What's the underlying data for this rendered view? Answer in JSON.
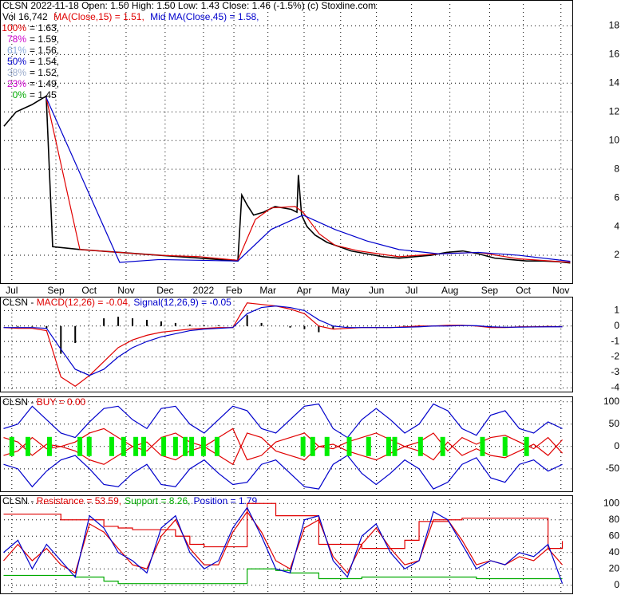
{
  "header": {
    "line1": "CLSN  2022-11-18 Open: 1.50  High: 1.50  Low: 1.43  Close: 1.46 (-1.5%)  (c) Stoxline.com",
    "vol": "Vol 16,742",
    "ma15": {
      "text": "MA(Close,15) = 1.51,",
      "color": "#e00000"
    },
    "ma45": {
      "text": "Mid MA(Close,45) = 1.58,",
      "color": "#0000cc"
    },
    "fib": [
      {
        "label": "100%",
        "text": "= 1.63,",
        "color": "#e00000"
      },
      {
        "label": "78%",
        "text": "= 1.59,",
        "color": "#cc00cc"
      },
      {
        "label": "61%",
        "text": "= 1.56,",
        "color": "#88aadd"
      },
      {
        "label": "50%",
        "text": "= 1.54,",
        "color": "#0000cc"
      },
      {
        "label": "38%",
        "text": "= 1.52,",
        "color": "#99aacc"
      },
      {
        "label": "23%",
        "text": "= 1.49,",
        "color": "#cc00cc"
      },
      {
        "label": "0%",
        "text": "= 1.45",
        "color": "#00aa00"
      }
    ]
  },
  "chart_data": [
    {
      "type": "line",
      "xlim": [
        0,
        16
      ],
      "ylim": [
        0,
        19.8
      ],
      "yticks": [
        2,
        4,
        6,
        8,
        10,
        12,
        14,
        16,
        18
      ],
      "grid": true,
      "xticks": [
        {
          "value": 0.33,
          "label": "Jul"
        },
        {
          "value": 1.56,
          "label": "Sep"
        },
        {
          "value": 2.49,
          "label": "Oct"
        },
        {
          "value": 3.52,
          "label": "Nov"
        },
        {
          "value": 4.61,
          "label": "Dec"
        },
        {
          "value": 5.68,
          "label": "2022"
        },
        {
          "value": 6.53,
          "label": "Feb"
        },
        {
          "value": 7.48,
          "label": "Mar"
        },
        {
          "value": 8.49,
          "label": "Apr"
        },
        {
          "value": 9.51,
          "label": "May"
        },
        {
          "value": 10.51,
          "label": "Jun"
        },
        {
          "value": 11.49,
          "label": "Jul"
        },
        {
          "value": 12.56,
          "label": "Aug"
        },
        {
          "value": 13.67,
          "label": "Sep"
        },
        {
          "value": 14.61,
          "label": "Oct"
        },
        {
          "value": 15.66,
          "label": "Nov"
        }
      ],
      "series": [
        {
          "color": "#000000",
          "x": [
            0.11,
            0.45,
            0.89,
            1.29,
            1.47,
            2.23,
            3.34,
            4.45,
            5.57,
            6.64,
            6.75,
            6.9,
            7.08,
            7.35,
            7.68,
            8.13,
            8.29,
            8.33,
            8.42,
            8.57,
            8.8,
            9.13,
            9.47,
            9.8,
            10.24,
            10.69,
            11.14,
            11.58,
            12.03,
            12.47,
            12.92,
            13.36,
            13.81,
            14.25,
            14.7,
            15.14,
            15.59,
            15.92
          ],
          "values": [
            11,
            12,
            12.5,
            13.1,
            2.6,
            2.4,
            2.2,
            2.0,
            1.8,
            1.6,
            6.2,
            5.5,
            4.8,
            5.0,
            5.4,
            5.2,
            5.0,
            7.6,
            4.8,
            4.0,
            3.4,
            2.9,
            2.6,
            2.3,
            2.1,
            1.9,
            1.8,
            1.9,
            2.0,
            2.2,
            2.3,
            2.1,
            1.8,
            1.7,
            1.6,
            1.6,
            1.55,
            1.46
          ]
        },
        {
          "color": "#e00000",
          "x": [
            1.29,
            2.23,
            3.34,
            4.45,
            5.57,
            6.64,
            7.13,
            7.57,
            8.24,
            8.46,
            8.91,
            9.35,
            10.02,
            11.14,
            12.25,
            13.36,
            14.48,
            15.92
          ],
          "values": [
            13.0,
            2.4,
            2.2,
            2.0,
            1.9,
            1.65,
            4.5,
            5.3,
            5.4,
            5.0,
            3.5,
            2.7,
            2.3,
            1.9,
            2.1,
            2.2,
            1.75,
            1.51
          ]
        },
        {
          "color": "#0000cc",
          "x": [
            1.29,
            3.34,
            4.45,
            6.64,
            7.57,
            8.46,
            9.35,
            10.24,
            11.14,
            12.25,
            13.36,
            14.48,
            15.92
          ],
          "values": [
            13.0,
            1.5,
            1.7,
            1.6,
            3.8,
            4.8,
            3.8,
            3.0,
            2.4,
            2.1,
            2.2,
            2.0,
            1.58
          ]
        }
      ]
    },
    {
      "type": "macd",
      "prefix": "CLSN - ",
      "title_parts": [
        {
          "text": "MACD(12,26) = -0.04,",
          "color": "#e00000"
        },
        {
          "text": "Signal(12,26,9) = -0.05",
          "color": "#0000cc"
        }
      ],
      "xlim": [
        0,
        16
      ],
      "ylim": [
        -4.3,
        1.9
      ],
      "yticks": [
        1,
        0,
        -1,
        -2,
        -3,
        -4
      ],
      "grid": true,
      "x": [
        0.1,
        0.5,
        0.9,
        1.3,
        1.7,
        2.1,
        2.5,
        2.9,
        3.3,
        3.7,
        4.1,
        4.5,
        4.9,
        5.3,
        5.7,
        6.1,
        6.5,
        6.9,
        7.3,
        7.7,
        8.1,
        8.5,
        8.9,
        9.3,
        9.7,
        10.1,
        10.5,
        10.9,
        11.3,
        11.7,
        12.1,
        12.5,
        12.9,
        13.3,
        13.7,
        14.1,
        14.5,
        14.9,
        15.3,
        15.7
      ],
      "histogram": {
        "color": "#000000",
        "values": [
          0,
          -0.05,
          -0.05,
          -0.15,
          -1.8,
          -1.1,
          0,
          0.5,
          0.6,
          0.5,
          0.4,
          0.3,
          0.2,
          0.1,
          0.05,
          0.05,
          0,
          0.7,
          0.2,
          0,
          -0.1,
          -0.2,
          -0.4,
          -0.2,
          -0.05,
          0,
          0,
          0,
          0.03,
          0.05,
          0,
          0.05,
          0.02,
          -0.02,
          -0.05,
          -0.02,
          0.02,
          0.01,
          0.02,
          0.01
        ]
      },
      "series": [
        {
          "color": "#e00000",
          "values": [
            -0.1,
            -0.15,
            -0.15,
            -0.3,
            -3.3,
            -3.9,
            -3.2,
            -2.3,
            -1.4,
            -0.9,
            -0.6,
            -0.4,
            -0.3,
            -0.2,
            -0.15,
            -0.1,
            -0.1,
            1.5,
            1.4,
            1.3,
            1.1,
            0.8,
            0,
            -0.2,
            -0.15,
            -0.1,
            -0.1,
            -0.1,
            -0.05,
            0,
            0,
            0.05,
            0.05,
            0,
            -0.1,
            -0.1,
            -0.05,
            -0.05,
            -0.03,
            -0.04
          ]
        },
        {
          "color": "#0000cc",
          "values": [
            -0.1,
            -0.1,
            -0.1,
            -0.15,
            -1.5,
            -2.8,
            -3.2,
            -2.8,
            -2.0,
            -1.4,
            -1.0,
            -0.7,
            -0.5,
            -0.3,
            -0.2,
            -0.15,
            -0.1,
            0.8,
            1.2,
            1.3,
            1.2,
            1.0,
            0.4,
            0,
            -0.1,
            -0.1,
            -0.1,
            -0.1,
            -0.08,
            -0.05,
            0,
            0,
            0.03,
            0.02,
            -0.05,
            -0.08,
            -0.07,
            -0.06,
            -0.05,
            -0.05
          ]
        }
      ]
    },
    {
      "type": "buy",
      "prefix": "CLSN - ",
      "title_parts": [
        {
          "text": "BUY = 0.00",
          "color": "#e00000"
        }
      ],
      "xlim": [
        0,
        16
      ],
      "ylim": [
        -102,
        112
      ],
      "yticks": [
        100,
        50,
        0,
        -50
      ],
      "grid": true,
      "x": [
        0.1,
        0.5,
        0.9,
        1.3,
        1.7,
        2.1,
        2.5,
        2.9,
        3.3,
        3.7,
        4.1,
        4.5,
        4.9,
        5.3,
        5.7,
        6.1,
        6.5,
        6.9,
        7.3,
        7.7,
        8.1,
        8.5,
        8.9,
        9.3,
        9.7,
        10.1,
        10.5,
        10.9,
        11.3,
        11.7,
        12.1,
        12.5,
        12.9,
        13.3,
        13.7,
        14.1,
        14.5,
        14.9,
        15.3,
        15.7
      ],
      "signals": {
        "color": "#00ee00",
        "x": [
          0.33,
          0.78,
          1.38,
          2.23,
          2.49,
          3.12,
          3.45,
          3.79,
          4.01,
          4.57,
          4.9,
          5.17,
          5.35,
          5.68,
          6.06,
          8.46,
          8.73,
          9.13,
          9.75,
          10.29,
          10.85,
          11.02,
          11.74,
          12.36,
          13.47,
          14.1,
          14.7
        ]
      },
      "series": [
        {
          "color": "#0000cc",
          "values": [
            40,
            50,
            90,
            60,
            30,
            20,
            55,
            85,
            90,
            60,
            40,
            85,
            90,
            50,
            30,
            60,
            90,
            80,
            40,
            30,
            60,
            90,
            95,
            40,
            20,
            60,
            85,
            60,
            30,
            50,
            95,
            80,
            40,
            25,
            70,
            80,
            40,
            30,
            55,
            40
          ]
        },
        {
          "color": "#0000cc",
          "values": [
            -40,
            -50,
            -90,
            -55,
            -30,
            -20,
            -50,
            -85,
            -90,
            -60,
            -40,
            -85,
            -90,
            -50,
            -30,
            -60,
            -85,
            -80,
            -40,
            -30,
            -60,
            -90,
            -95,
            -40,
            -20,
            -60,
            -85,
            -60,
            -30,
            -50,
            -95,
            -80,
            -40,
            -25,
            -70,
            -80,
            -40,
            -30,
            -55,
            -40
          ]
        },
        {
          "color": "#e00000",
          "values": [
            20,
            10,
            -20,
            5,
            0,
            10,
            30,
            40,
            20,
            0,
            -10,
            20,
            30,
            10,
            0,
            20,
            40,
            -30,
            -20,
            10,
            20,
            30,
            0,
            -5,
            10,
            20,
            30,
            15,
            0,
            10,
            30,
            -10,
            20,
            5,
            20,
            25,
            10,
            -5,
            20,
            -15
          ]
        },
        {
          "color": "#e00000",
          "values": [
            -20,
            -10,
            20,
            -5,
            0,
            -10,
            -30,
            -40,
            -20,
            0,
            10,
            -20,
            -30,
            -10,
            0,
            -20,
            -40,
            30,
            20,
            -10,
            -20,
            -30,
            0,
            5,
            -10,
            -20,
            -30,
            -15,
            0,
            -10,
            -30,
            10,
            -20,
            -5,
            -20,
            -25,
            -10,
            5,
            -20,
            15
          ]
        }
      ]
    },
    {
      "type": "sr",
      "prefix": "CLSN - ",
      "title_parts": [
        {
          "text": "Resistance = 53.59,",
          "color": "#e00000"
        },
        {
          "text": "Support = 8.26,",
          "color": "#00aa00"
        },
        {
          "text": "Position = 1.79",
          "color": "#0000cc"
        }
      ],
      "xlim": [
        0,
        16
      ],
      "ylim": [
        -11,
        110
      ],
      "yticks": [
        100,
        80,
        60,
        40,
        20,
        0
      ],
      "grid": true,
      "x": [
        0.1,
        0.5,
        0.9,
        1.3,
        1.7,
        2.1,
        2.5,
        2.9,
        3.3,
        3.7,
        4.1,
        4.5,
        4.9,
        5.3,
        5.7,
        6.1,
        6.5,
        6.9,
        7.3,
        7.7,
        8.1,
        8.5,
        8.9,
        9.3,
        9.7,
        10.1,
        10.5,
        10.9,
        11.3,
        11.7,
        12.1,
        12.5,
        12.9,
        13.3,
        13.7,
        14.1,
        14.5,
        14.9,
        15.3,
        15.7
      ],
      "series": [
        {
          "color": "#e00000",
          "step": true,
          "values": [
            87,
            87,
            87,
            87,
            80,
            80,
            80,
            72,
            70,
            68,
            68,
            68,
            60,
            50,
            47,
            47,
            47,
            100,
            100,
            85,
            85,
            85,
            50,
            50,
            50,
            45,
            45,
            45,
            55,
            78,
            78,
            80,
            82,
            82,
            82,
            82,
            82,
            82,
            45,
            54
          ]
        },
        {
          "color": "#00aa00",
          "step": true,
          "values": [
            12,
            12,
            12,
            12,
            12,
            10,
            10,
            5,
            2,
            2,
            2,
            2,
            2,
            2,
            2,
            2,
            2,
            20,
            20,
            18,
            15,
            15,
            8,
            8,
            8,
            10,
            10,
            10,
            10,
            10,
            10,
            10,
            10,
            8,
            8,
            8,
            8,
            8,
            8,
            8
          ]
        },
        {
          "color": "#e00000",
          "values": [
            30,
            50,
            30,
            45,
            25,
            15,
            75,
            65,
            45,
            25,
            20,
            60,
            80,
            45,
            25,
            25,
            65,
            90,
            65,
            30,
            20,
            70,
            80,
            35,
            15,
            50,
            70,
            45,
            25,
            30,
            80,
            80,
            55,
            25,
            30,
            25,
            35,
            30,
            45,
            25
          ]
        },
        {
          "color": "#0000cc",
          "values": [
            40,
            55,
            20,
            50,
            30,
            10,
            85,
            70,
            40,
            30,
            15,
            70,
            85,
            40,
            20,
            30,
            70,
            95,
            60,
            20,
            15,
            80,
            85,
            30,
            10,
            60,
            75,
            40,
            20,
            30,
            90,
            80,
            50,
            20,
            30,
            25,
            40,
            35,
            50,
            2
          ]
        }
      ]
    }
  ]
}
